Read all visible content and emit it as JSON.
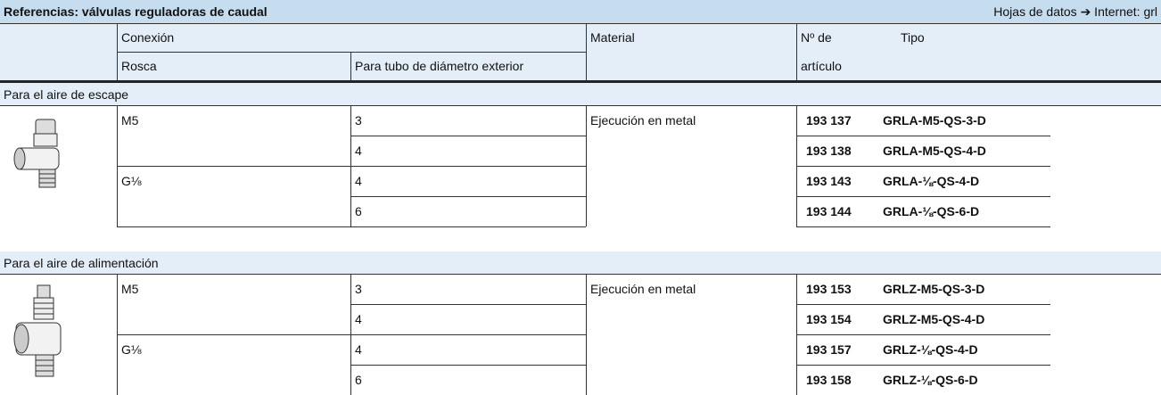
{
  "header": {
    "title": "Referencias: válvulas reguladoras de caudal",
    "note": "Hojas de datos ➔ Internet: grl"
  },
  "columns": {
    "connection": "Conexión",
    "thread": "Rosca",
    "tube": "Para tubo de diámetro exterior",
    "material": "Material",
    "part_no": [
      "Nº de",
      "artículo"
    ],
    "type": "Tipo"
  },
  "sections": [
    {
      "title": "Para el aire de escape",
      "material": "Ejecución en metal",
      "threads": [
        {
          "thread": "M5",
          "rows": [
            {
              "tube": "3",
              "part_no": "193 137",
              "type": "GRLA-M5-QS-3-D"
            },
            {
              "tube": "4",
              "part_no": "193 138",
              "type": "GRLA-M5-QS-4-D"
            }
          ]
        },
        {
          "thread": "G⅛",
          "rows": [
            {
              "tube": "4",
              "part_no": "193 143",
              "type": "GRLA-⅛-QS-4-D"
            },
            {
              "tube": "6",
              "part_no": "193 144",
              "type": "GRLA-⅛-QS-6-D"
            }
          ]
        }
      ]
    },
    {
      "title": "Para el aire de alimentación",
      "material": "Ejecución en metal",
      "threads": [
        {
          "thread": "M5",
          "rows": [
            {
              "tube": "3",
              "part_no": "193 153",
              "type": "GRLZ-M5-QS-3-D"
            },
            {
              "tube": "4",
              "part_no": "193 154",
              "type": "GRLZ-M5-QS-4-D"
            }
          ]
        },
        {
          "thread": "G⅛",
          "rows": [
            {
              "tube": "4",
              "part_no": "193 157",
              "type": "GRLZ-⅛-QS-4-D"
            },
            {
              "tube": "6",
              "part_no": "193 158",
              "type": "GRLZ-⅛-QS-6-D"
            }
          ]
        }
      ]
    }
  ]
}
